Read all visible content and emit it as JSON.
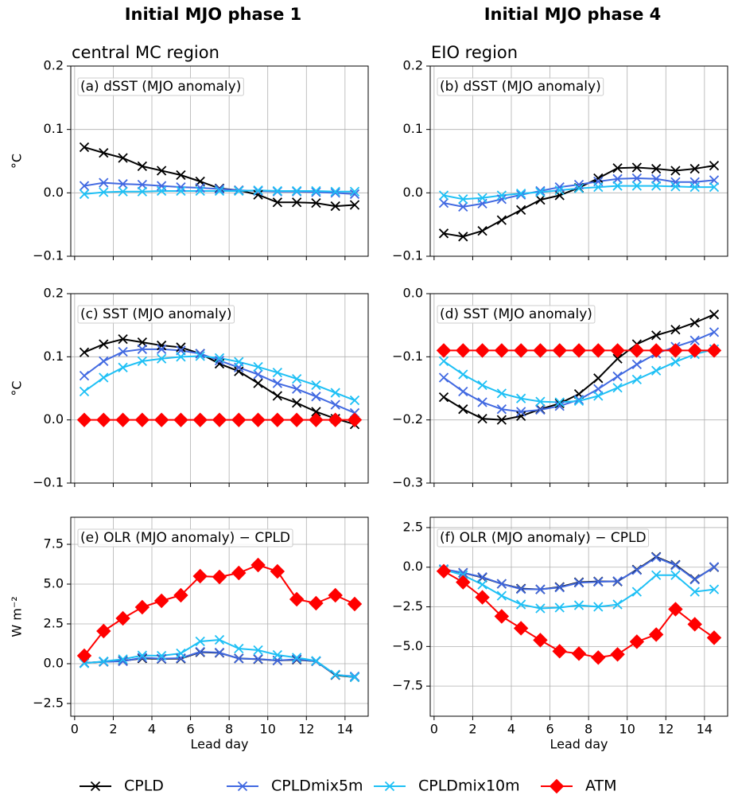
{
  "chart_data": [
    {
      "type": "line",
      "title": "Initial MJO phase 1",
      "subtitle": "central MC region",
      "panel_label": "(a) dSST (MJO anomaly)",
      "ylabel": "°C",
      "x": [
        0.5,
        1.5,
        2.5,
        3.5,
        4.5,
        5.5,
        6.5,
        7.5,
        8.5,
        9.5,
        10.5,
        11.5,
        12.5,
        13.5,
        14.5
      ],
      "xlim": [
        -0.2,
        15.2
      ],
      "xticks": [
        0,
        2,
        4,
        6,
        8,
        10,
        12,
        14
      ],
      "show_xtick_labels": false,
      "ylim": [
        -0.1,
        0.2
      ],
      "yticks": [
        {
          "value": -0.1,
          "label": "−0.1"
        },
        {
          "value": 0,
          "label": "0.0"
        },
        0.1,
        0.2
      ],
      "grid": true,
      "series": [
        {
          "name": "CPLD",
          "color": "#000000",
          "marker": "x",
          "values": [
            0.072,
            0.063,
            0.055,
            0.042,
            0.035,
            0.028,
            0.018,
            0.007,
            0.004,
            -0.003,
            -0.015,
            -0.015,
            -0.016,
            -0.021,
            -0.019
          ]
        },
        {
          "name": "CPLDmix5m",
          "color": "#4169e1",
          "marker": "x",
          "values": [
            0.011,
            0.016,
            0.014,
            0.013,
            0.011,
            0.009,
            0.008,
            0.006,
            0.004,
            0.003,
            0.002,
            0.002,
            0.001,
            0.0,
            -0.002
          ]
        },
        {
          "name": "CPLDmix10m",
          "color": "#1ec0f5",
          "marker": "x",
          "values": [
            -0.002,
            0.001,
            0.002,
            0.002,
            0.003,
            0.003,
            0.003,
            0.003,
            0.003,
            0.004,
            0.003,
            0.003,
            0.003,
            0.002,
            0.002
          ]
        }
      ]
    },
    {
      "type": "line",
      "title": "Initial MJO phase 4",
      "subtitle": "EIO region",
      "panel_label": "(b) dSST (MJO anomaly)",
      "x": [
        0.5,
        1.5,
        2.5,
        3.5,
        4.5,
        5.5,
        6.5,
        7.5,
        8.5,
        9.5,
        10.5,
        11.5,
        12.5,
        13.5,
        14.5
      ],
      "xlim": [
        -0.2,
        15.2
      ],
      "xticks": [
        0,
        2,
        4,
        6,
        8,
        10,
        12,
        14
      ],
      "show_xtick_labels": false,
      "ylim": [
        -0.1,
        0.2
      ],
      "yticks": [
        {
          "value": -0.1,
          "label": "−0.1"
        },
        {
          "value": 0,
          "label": "0.0"
        },
        0.1,
        0.2
      ],
      "grid": true,
      "series": [
        {
          "name": "CPLD",
          "color": "#000000",
          "marker": "x",
          "values": [
            -0.064,
            -0.069,
            -0.06,
            -0.043,
            -0.027,
            -0.011,
            -0.004,
            0.008,
            0.023,
            0.039,
            0.04,
            0.038,
            0.035,
            0.038,
            0.043
          ]
        },
        {
          "name": "CPLDmix5m",
          "color": "#4169e1",
          "marker": "x",
          "values": [
            -0.016,
            -0.022,
            -0.017,
            -0.01,
            -0.003,
            0.003,
            0.009,
            0.013,
            0.018,
            0.022,
            0.023,
            0.022,
            0.017,
            0.017,
            0.02
          ]
        },
        {
          "name": "CPLDmix10m",
          "color": "#1ec0f5",
          "marker": "x",
          "values": [
            -0.004,
            -0.01,
            -0.008,
            -0.004,
            -0.001,
            0.001,
            0.004,
            0.007,
            0.009,
            0.011,
            0.011,
            0.011,
            0.01,
            0.009,
            0.009
          ]
        }
      ]
    },
    {
      "type": "line",
      "panel_label": "(c) SST (MJO anomaly)",
      "ylabel": "°C",
      "x": [
        0.5,
        1.5,
        2.5,
        3.5,
        4.5,
        5.5,
        6.5,
        7.5,
        8.5,
        9.5,
        10.5,
        11.5,
        12.5,
        13.5,
        14.5
      ],
      "xlim": [
        -0.2,
        15.2
      ],
      "xticks": [
        0,
        2,
        4,
        6,
        8,
        10,
        12,
        14
      ],
      "show_xtick_labels": false,
      "ylim": [
        -0.1,
        0.2
      ],
      "yticks": [
        {
          "value": -0.1,
          "label": "−0.1"
        },
        {
          "value": 0,
          "label": "0.0"
        },
        0.1,
        0.2
      ],
      "grid": true,
      "series": [
        {
          "name": "CPLD",
          "color": "#000000",
          "marker": "x",
          "values": [
            0.107,
            0.12,
            0.128,
            0.123,
            0.118,
            0.115,
            0.105,
            0.089,
            0.077,
            0.058,
            0.038,
            0.027,
            0.013,
            0.002,
            -0.007
          ]
        },
        {
          "name": "CPLDmix5m",
          "color": "#4169e1",
          "marker": "x",
          "values": [
            0.07,
            0.093,
            0.108,
            0.112,
            0.112,
            0.11,
            0.105,
            0.094,
            0.083,
            0.072,
            0.058,
            0.049,
            0.037,
            0.024,
            0.011
          ]
        },
        {
          "name": "CPLDmix10m",
          "color": "#1ec0f5",
          "marker": "x",
          "values": [
            0.045,
            0.067,
            0.083,
            0.093,
            0.097,
            0.1,
            0.101,
            0.098,
            0.092,
            0.084,
            0.075,
            0.065,
            0.055,
            0.043,
            0.031
          ]
        },
        {
          "name": "ATM",
          "color": "#ff0000",
          "marker": "diamond",
          "values": [
            0,
            0,
            0,
            0,
            0,
            0,
            0,
            0,
            0,
            0,
            0,
            0,
            0,
            0,
            0
          ]
        }
      ]
    },
    {
      "type": "line",
      "panel_label": "(d) SST (MJO anomaly)",
      "x": [
        0.5,
        1.5,
        2.5,
        3.5,
        4.5,
        5.5,
        6.5,
        7.5,
        8.5,
        9.5,
        10.5,
        11.5,
        12.5,
        13.5,
        14.5
      ],
      "xlim": [
        -0.2,
        15.2
      ],
      "xticks": [
        0,
        2,
        4,
        6,
        8,
        10,
        12,
        14
      ],
      "show_xtick_labels": false,
      "ylim": [
        -0.3,
        0.0
      ],
      "yticks": [
        {
          "value": -0.3,
          "label": "−0.3"
        },
        {
          "value": -0.2,
          "label": "−0.2"
        },
        {
          "value": -0.1,
          "label": "−0.1"
        },
        {
          "value": 0,
          "label": "0.0"
        }
      ],
      "grid": true,
      "series": [
        {
          "name": "CPLD",
          "color": "#000000",
          "marker": "x",
          "values": [
            -0.164,
            -0.183,
            -0.198,
            -0.2,
            -0.194,
            -0.183,
            -0.174,
            -0.159,
            -0.134,
            -0.103,
            -0.08,
            -0.066,
            -0.057,
            -0.046,
            -0.033
          ]
        },
        {
          "name": "CPLDmix5m",
          "color": "#4169e1",
          "marker": "x",
          "values": [
            -0.133,
            -0.155,
            -0.172,
            -0.183,
            -0.187,
            -0.184,
            -0.178,
            -0.168,
            -0.151,
            -0.131,
            -0.112,
            -0.095,
            -0.084,
            -0.074,
            -0.061
          ]
        },
        {
          "name": "CPLDmix10m",
          "color": "#1ec0f5",
          "marker": "x",
          "values": [
            -0.107,
            -0.128,
            -0.145,
            -0.158,
            -0.166,
            -0.171,
            -0.172,
            -0.17,
            -0.162,
            -0.149,
            -0.136,
            -0.122,
            -0.108,
            -0.096,
            -0.088
          ]
        },
        {
          "name": "ATM",
          "color": "#ff0000",
          "marker": "diamond",
          "values": [
            -0.09,
            -0.09,
            -0.09,
            -0.09,
            -0.09,
            -0.09,
            -0.09,
            -0.09,
            -0.09,
            -0.09,
            -0.09,
            -0.09,
            -0.09,
            -0.09,
            -0.09
          ]
        }
      ]
    },
    {
      "type": "line",
      "panel_label": "(e) OLR (MJO anomaly) − CPLD",
      "ylabel": "W m⁻²",
      "xlabel": "Lead day",
      "x": [
        0.5,
        1.5,
        2.5,
        3.5,
        4.5,
        5.5,
        6.5,
        7.5,
        8.5,
        9.5,
        10.5,
        11.5,
        12.5,
        13.5,
        14.5
      ],
      "xlim": [
        -0.2,
        15.2
      ],
      "xticks": [
        0,
        2,
        4,
        6,
        8,
        10,
        12,
        14
      ],
      "show_xtick_labels": true,
      "ylim": [
        -3.3,
        9.2
      ],
      "yticks": [
        {
          "value": -2.5,
          "label": "−2.5"
        },
        {
          "value": 0,
          "label": "0.0"
        },
        2.5,
        {
          "value": 5,
          "label": "5.0"
        },
        7.5
      ],
      "grid": true,
      "series": [
        {
          "name": "CPLD",
          "color": "#000000",
          "marker": "x",
          "values": [
            0.05,
            0.12,
            0.18,
            0.33,
            0.3,
            0.32,
            0.72,
            0.68,
            0.33,
            0.28,
            0.2,
            0.25,
            0.15,
            -0.72,
            -0.85
          ]
        },
        {
          "name": "CPLDmix5m",
          "color": "#4169e1",
          "marker": "x",
          "values": [
            0.05,
            0.12,
            0.15,
            0.38,
            0.32,
            0.35,
            0.75,
            0.7,
            0.32,
            0.3,
            0.2,
            0.28,
            0.15,
            -0.7,
            -0.8
          ]
        },
        {
          "name": "CPLDmix10m",
          "color": "#1ec0f5",
          "marker": "x",
          "values": [
            0.02,
            0.15,
            0.28,
            0.52,
            0.5,
            0.65,
            1.4,
            1.5,
            0.95,
            0.85,
            0.55,
            0.38,
            0.18,
            -0.68,
            -0.85
          ]
        },
        {
          "name": "ATM",
          "color": "#ff0000",
          "marker": "diamond",
          "values": [
            0.5,
            2.05,
            2.85,
            3.55,
            3.95,
            4.3,
            5.5,
            5.45,
            5.7,
            6.2,
            5.8,
            4.05,
            3.8,
            4.3,
            3.75
          ]
        }
      ]
    },
    {
      "type": "line",
      "panel_label": "(f) OLR (MJO anomaly) − CPLD",
      "xlabel": "Lead day",
      "x": [
        0.5,
        1.5,
        2.5,
        3.5,
        4.5,
        5.5,
        6.5,
        7.5,
        8.5,
        9.5,
        10.5,
        11.5,
        12.5,
        13.5,
        14.5
      ],
      "xlim": [
        -0.2,
        15.2
      ],
      "xticks": [
        0,
        2,
        4,
        6,
        8,
        10,
        12,
        14
      ],
      "show_xtick_labels": true,
      "ylim": [
        -9.4,
        3.15
      ],
      "yticks": [
        {
          "value": -7.5,
          "label": "−7.5"
        },
        {
          "value": -5,
          "label": "−5.0"
        },
        {
          "value": -2.5,
          "label": "−2.5"
        },
        {
          "value": 0,
          "label": "0.0"
        },
        2.5
      ],
      "grid": true,
      "series": [
        {
          "name": "CPLD",
          "color": "#000000",
          "marker": "x",
          "values": [
            -0.15,
            -0.35,
            -0.65,
            -1.05,
            -1.35,
            -1.4,
            -1.25,
            -0.95,
            -0.9,
            -0.9,
            -0.15,
            0.65,
            0.15,
            -0.75,
            0.0
          ]
        },
        {
          "name": "CPLDmix5m",
          "color": "#4169e1",
          "marker": "x",
          "values": [
            -0.12,
            -0.35,
            -0.62,
            -1.05,
            -1.38,
            -1.4,
            -1.28,
            -0.98,
            -0.92,
            -0.88,
            -0.18,
            0.62,
            0.12,
            -0.78,
            0.02
          ]
        },
        {
          "name": "CPLDmix10m",
          "color": "#1ec0f5",
          "marker": "x",
          "values": [
            -0.15,
            -0.5,
            -1.1,
            -1.8,
            -2.35,
            -2.6,
            -2.55,
            -2.4,
            -2.5,
            -2.35,
            -1.55,
            -0.5,
            -0.5,
            -1.55,
            -1.4
          ]
        },
        {
          "name": "ATM",
          "color": "#ff0000",
          "marker": "diamond",
          "values": [
            -0.25,
            -0.95,
            -1.9,
            -3.1,
            -3.85,
            -4.6,
            -5.3,
            -5.45,
            -5.7,
            -5.5,
            -4.7,
            -4.25,
            -2.65,
            -3.6,
            -4.45
          ]
        }
      ]
    }
  ]
}
